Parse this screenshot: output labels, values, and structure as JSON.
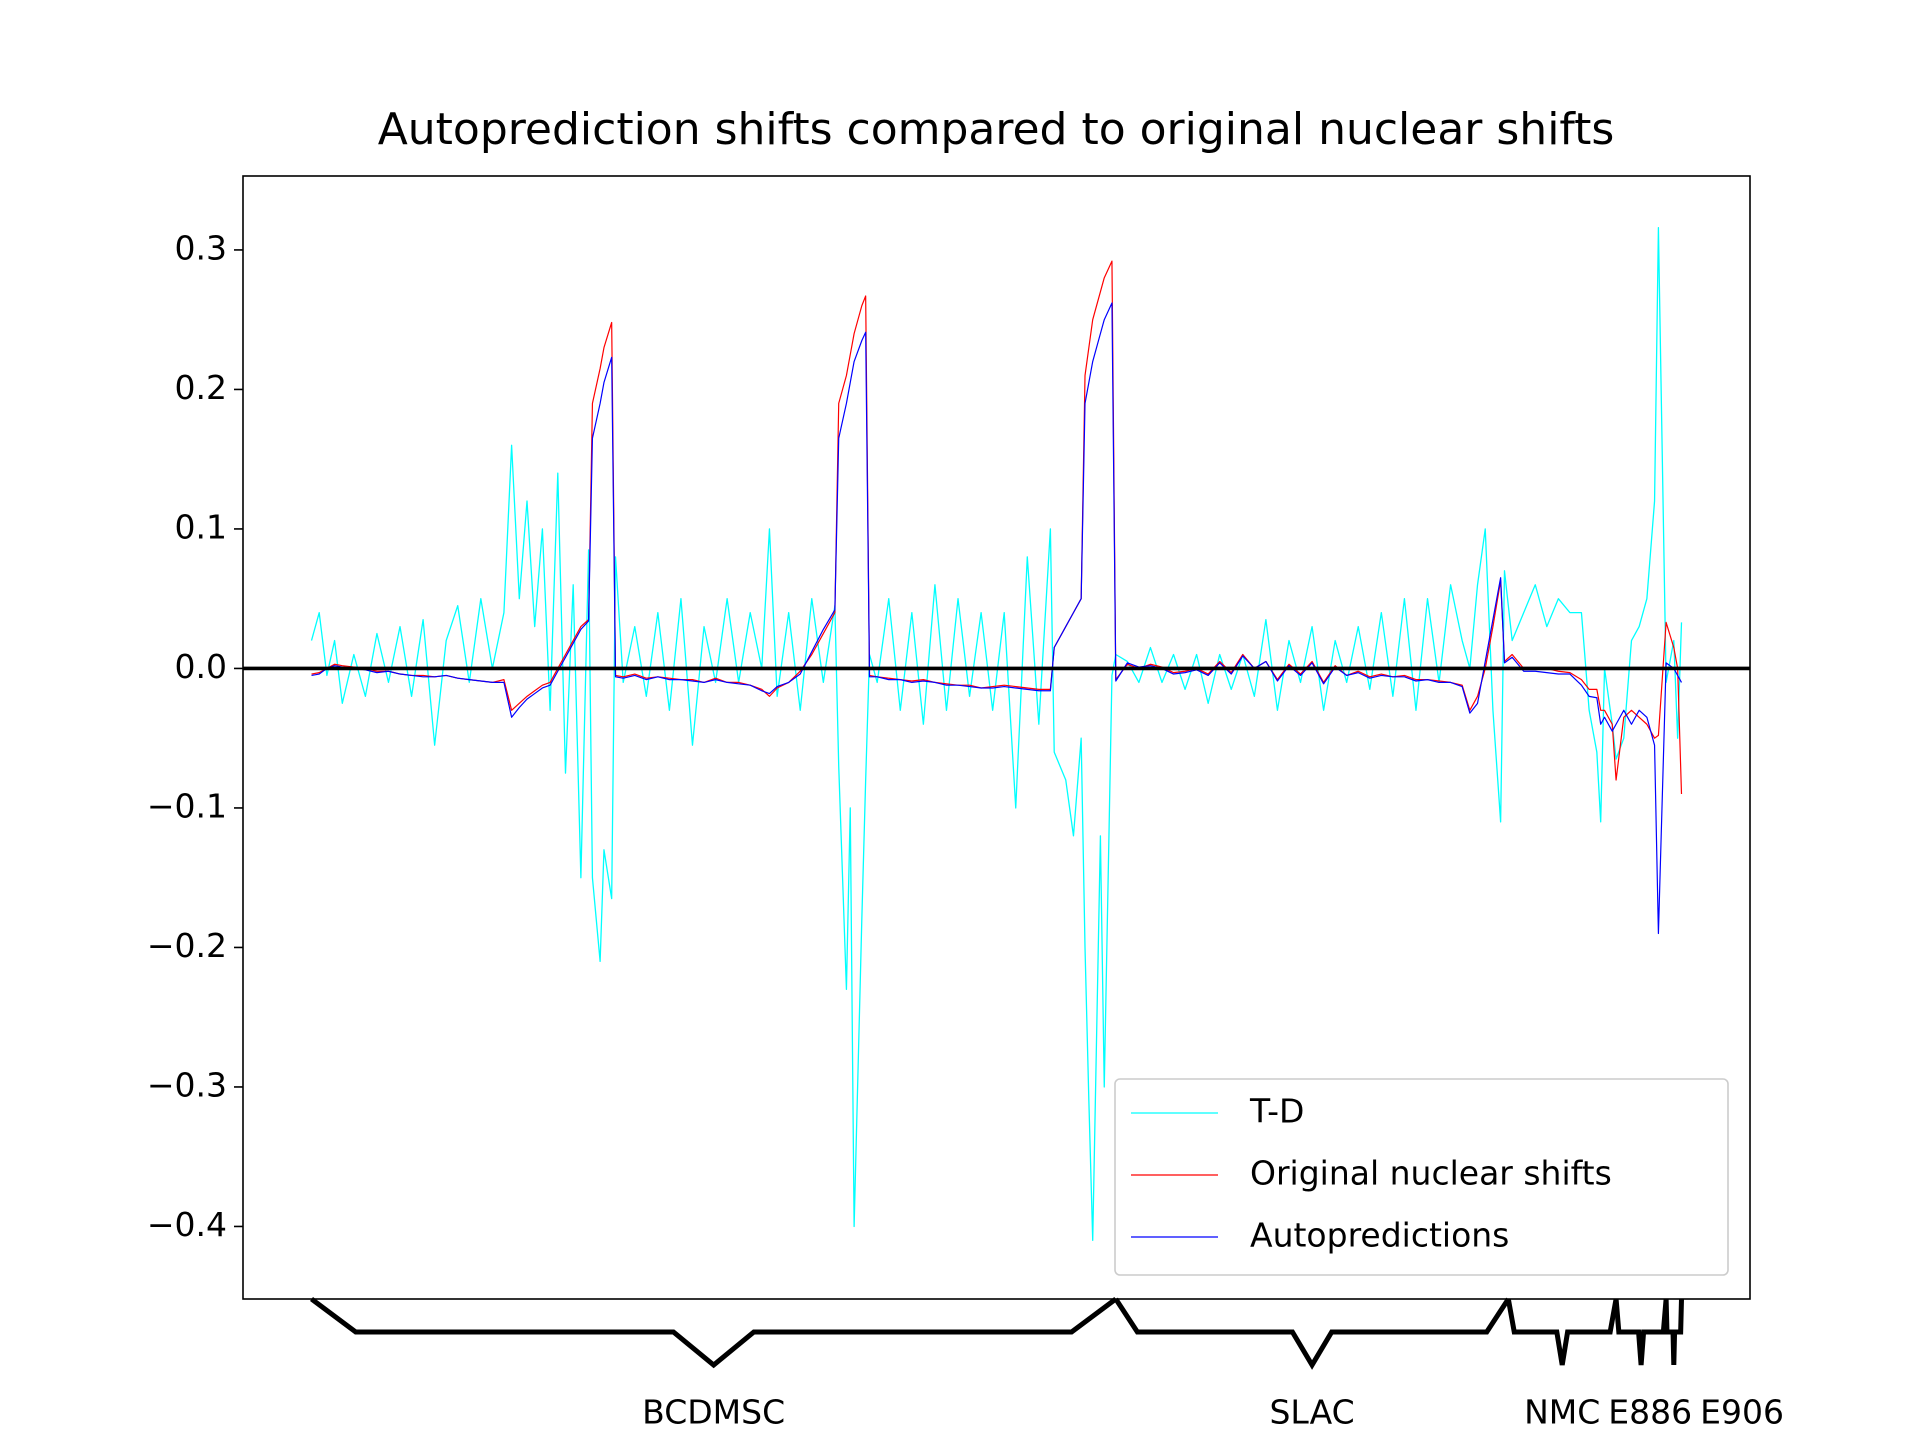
{
  "chart_data": {
    "type": "line",
    "title": "Autoprediction shifts compared to original nuclear shifts",
    "x": [
      0,
      2,
      4,
      6,
      8,
      11,
      14,
      17,
      20,
      23,
      26,
      29,
      32,
      35,
      38,
      41,
      44,
      47,
      50,
      52,
      54,
      56,
      58,
      60,
      62,
      64,
      66,
      68,
      70,
      72,
      73,
      75,
      76,
      78,
      79,
      81,
      84,
      87,
      90,
      93,
      96,
      99,
      102,
      105,
      108,
      111,
      114,
      117,
      119,
      121,
      124,
      127,
      130,
      133,
      136,
      137,
      139,
      140,
      141,
      143,
      144,
      145,
      147,
      150,
      153,
      156,
      159,
      162,
      165,
      168,
      171,
      174,
      177,
      180,
      183,
      186,
      189,
      192,
      193,
      196,
      198,
      200,
      201,
      202,
      203,
      205,
      206,
      208,
      209,
      212,
      215,
      218,
      221,
      224,
      227,
      230,
      233,
      236,
      239,
      242,
      245,
      248,
      251,
      254,
      257,
      260,
      263,
      266,
      269,
      272,
      275,
      278,
      281,
      284,
      287,
      290,
      293,
      296,
      299,
      301,
      303,
      305,
      307,
      309,
      310,
      312,
      315,
      318,
      321,
      324,
      327,
      330,
      332,
      334,
      335,
      336,
      338,
      339,
      341,
      343,
      345,
      347,
      349,
      350,
      352,
      354,
      355,
      356
    ],
    "series": [
      {
        "name": "T-D",
        "color": "#00ffff",
        "values": [
          0.02,
          0.04,
          -0.005,
          0.02,
          -0.025,
          0.01,
          -0.02,
          0.025,
          -0.01,
          0.03,
          -0.02,
          0.035,
          -0.055,
          0.02,
          0.045,
          -0.01,
          0.05,
          0.0,
          0.04,
          0.16,
          0.05,
          0.12,
          0.03,
          0.1,
          -0.03,
          0.14,
          -0.075,
          0.06,
          -0.15,
          0.085,
          -0.15,
          -0.21,
          -0.13,
          -0.165,
          0.08,
          -0.01,
          0.03,
          -0.02,
          0.04,
          -0.03,
          0.05,
          -0.055,
          0.03,
          -0.01,
          0.05,
          -0.01,
          0.04,
          0.0,
          0.1,
          -0.02,
          0.04,
          -0.03,
          0.05,
          -0.01,
          0.045,
          -0.07,
          -0.23,
          -0.1,
          -0.4,
          -0.18,
          -0.08,
          0.01,
          -0.01,
          0.05,
          -0.03,
          0.04,
          -0.04,
          0.06,
          -0.03,
          0.05,
          -0.02,
          0.04,
          -0.03,
          0.04,
          -0.1,
          0.08,
          -0.04,
          0.1,
          -0.06,
          -0.08,
          -0.12,
          -0.05,
          -0.2,
          -0.31,
          -0.41,
          -0.12,
          -0.3,
          -0.005,
          0.01,
          0.005,
          -0.01,
          0.015,
          -0.01,
          0.01,
          -0.015,
          0.01,
          -0.025,
          0.01,
          -0.015,
          0.01,
          -0.02,
          0.035,
          -0.03,
          0.02,
          -0.01,
          0.03,
          -0.03,
          0.02,
          -0.01,
          0.03,
          -0.015,
          0.04,
          -0.02,
          0.05,
          -0.03,
          0.05,
          -0.01,
          0.06,
          0.02,
          0.0,
          0.06,
          0.1,
          -0.03,
          -0.11,
          0.07,
          0.02,
          0.04,
          0.06,
          0.03,
          0.05,
          0.04,
          0.04,
          -0.03,
          -0.06,
          -0.11,
          0.0,
          -0.04,
          -0.065,
          -0.05,
          0.02,
          0.03,
          0.05,
          0.12,
          0.316,
          -0.01,
          0.02,
          -0.05,
          0.033
        ]
      },
      {
        "name": "Original nuclear shifts",
        "color": "#ff0000",
        "values": [
          -0.004,
          -0.003,
          0.0,
          0.003,
          0.002,
          0.001,
          0.0,
          -0.002,
          -0.002,
          -0.004,
          -0.005,
          -0.005,
          -0.006,
          -0.005,
          -0.007,
          -0.008,
          -0.009,
          -0.01,
          -0.008,
          -0.03,
          -0.025,
          -0.02,
          -0.016,
          -0.012,
          -0.01,
          0.0,
          0.01,
          0.02,
          0.03,
          0.035,
          0.19,
          0.215,
          0.23,
          0.248,
          -0.005,
          -0.006,
          -0.004,
          -0.007,
          -0.006,
          -0.007,
          -0.008,
          -0.008,
          -0.01,
          -0.007,
          -0.01,
          -0.01,
          -0.012,
          -0.015,
          -0.02,
          -0.014,
          -0.01,
          -0.002,
          0.01,
          0.025,
          0.04,
          0.19,
          0.21,
          0.225,
          0.24,
          0.26,
          0.267,
          -0.005,
          -0.006,
          -0.007,
          -0.008,
          -0.009,
          -0.008,
          -0.01,
          -0.011,
          -0.012,
          -0.012,
          -0.014,
          -0.013,
          -0.012,
          -0.013,
          -0.014,
          -0.015,
          -0.015,
          0.015,
          0.03,
          0.04,
          0.05,
          0.21,
          0.23,
          0.25,
          0.27,
          0.28,
          0.292,
          -0.008,
          0.003,
          0.0,
          0.003,
          0.001,
          -0.003,
          -0.002,
          0.0,
          -0.004,
          0.005,
          -0.003,
          0.01,
          0.0,
          0.005,
          -0.008,
          0.003,
          -0.004,
          0.005,
          -0.01,
          0.002,
          -0.005,
          -0.002,
          -0.006,
          -0.004,
          -0.006,
          -0.005,
          -0.008,
          -0.008,
          -0.009,
          -0.01,
          -0.012,
          -0.03,
          -0.02,
          0.0,
          0.03,
          0.063,
          0.005,
          0.01,
          0.0,
          0.0,
          0.0,
          -0.002,
          -0.003,
          -0.008,
          -0.015,
          -0.015,
          -0.03,
          -0.03,
          -0.04,
          -0.08,
          -0.035,
          -0.03,
          -0.035,
          -0.04,
          -0.05,
          -0.048,
          0.033,
          0.015,
          0.0,
          -0.09
        ]
      },
      {
        "name": "Autopredictions",
        "color": "#0000ff",
        "values": [
          -0.005,
          -0.004,
          0.0,
          0.002,
          0.001,
          0.0,
          -0.001,
          -0.003,
          -0.002,
          -0.004,
          -0.005,
          -0.006,
          -0.006,
          -0.005,
          -0.007,
          -0.008,
          -0.009,
          -0.01,
          -0.01,
          -0.035,
          -0.028,
          -0.022,
          -0.018,
          -0.014,
          -0.012,
          -0.002,
          0.008,
          0.018,
          0.028,
          0.034,
          0.165,
          0.19,
          0.205,
          0.223,
          -0.006,
          -0.007,
          -0.005,
          -0.008,
          -0.006,
          -0.008,
          -0.008,
          -0.009,
          -0.01,
          -0.008,
          -0.01,
          -0.011,
          -0.012,
          -0.016,
          -0.018,
          -0.013,
          -0.01,
          -0.004,
          0.012,
          0.028,
          0.042,
          0.165,
          0.19,
          0.205,
          0.22,
          0.235,
          0.241,
          -0.006,
          -0.006,
          -0.008,
          -0.008,
          -0.01,
          -0.009,
          -0.01,
          -0.012,
          -0.012,
          -0.013,
          -0.014,
          -0.014,
          -0.013,
          -0.014,
          -0.015,
          -0.016,
          -0.016,
          0.015,
          0.03,
          0.04,
          0.05,
          0.19,
          0.205,
          0.22,
          0.24,
          0.25,
          0.262,
          -0.009,
          0.004,
          0.001,
          0.002,
          0.0,
          -0.004,
          -0.003,
          -0.001,
          -0.005,
          0.004,
          -0.004,
          0.009,
          0.0,
          0.005,
          -0.009,
          0.002,
          -0.005,
          0.004,
          -0.011,
          0.001,
          -0.005,
          -0.003,
          -0.007,
          -0.005,
          -0.006,
          -0.006,
          -0.009,
          -0.008,
          -0.01,
          -0.01,
          -0.013,
          -0.032,
          -0.025,
          0.005,
          0.035,
          0.065,
          0.004,
          0.008,
          -0.002,
          -0.002,
          -0.003,
          -0.004,
          -0.004,
          -0.012,
          -0.02,
          -0.021,
          -0.04,
          -0.035,
          -0.045,
          -0.04,
          -0.03,
          -0.04,
          -0.03,
          -0.035,
          -0.055,
          -0.19,
          0.004,
          0.0,
          -0.005,
          -0.01
        ]
      }
    ],
    "xlim": [
      -17.8,
      373.8
    ],
    "ylim": [
      -0.452,
      0.353
    ],
    "yticks": [
      {
        "value": -0.4,
        "label": "−0.4"
      },
      {
        "value": -0.3,
        "label": "−0.3"
      },
      {
        "value": -0.2,
        "label": "−0.2"
      },
      {
        "value": -0.1,
        "label": "−0.1"
      },
      {
        "value": 0,
        "label": "0.0"
      },
      0.1,
      0.2,
      0.3
    ],
    "hline": 0,
    "legend": "lower right",
    "groups": [
      {
        "label": "BCDMSC",
        "start": 0,
        "end": 209
      },
      {
        "label": "SLAC",
        "start": 209,
        "end": 311
      },
      {
        "label": "NMC",
        "start": 311,
        "end": 339
      },
      {
        "label": "E886",
        "start": 339,
        "end": 352
      },
      {
        "label": "E906",
        "start": 352,
        "end": 356
      }
    ]
  }
}
